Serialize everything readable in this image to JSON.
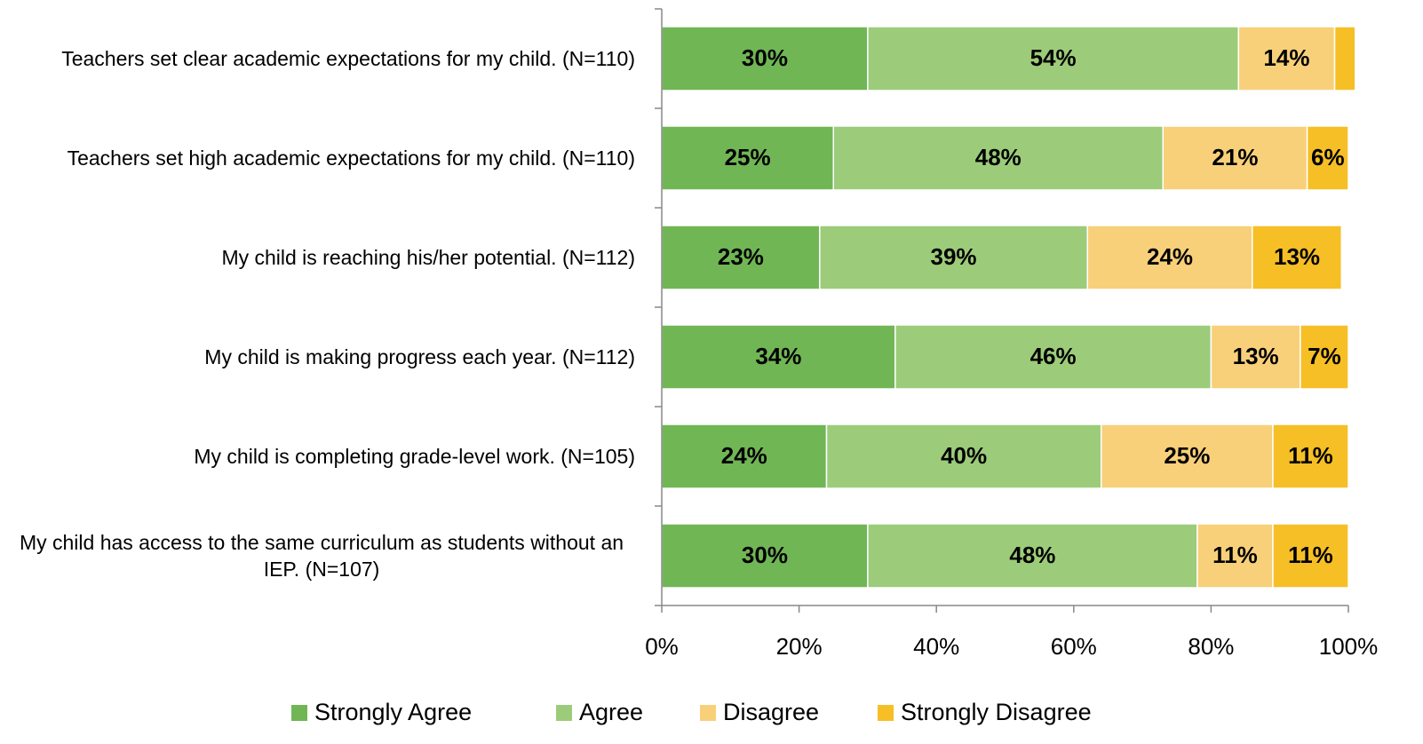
{
  "chart_data": {
    "type": "stacked_bar_horizontal",
    "categories": [
      "Teachers set clear academic expectations for my child. (N=110)",
      "Teachers set high academic expectations for my child. (N=110)",
      "My child is reaching his/her potential. (N=112)",
      "My child is making progress each year. (N=112)",
      "My child is completing grade-level work. (N=105)",
      "My child has access to the same curriculum as students without an IEP. (N=107)"
    ],
    "series": [
      {
        "name": "Strongly Agree",
        "color": "#70b655",
        "values": [
          30,
          25,
          23,
          34,
          24,
          30
        ],
        "value_labels": [
          "30%",
          "25%",
          "23%",
          "34%",
          "24%",
          "30%"
        ]
      },
      {
        "name": "Agree",
        "color": "#9ccc7a",
        "values": [
          54,
          48,
          39,
          46,
          40,
          48
        ],
        "value_labels": [
          "54%",
          "48%",
          "39%",
          "46%",
          "40%",
          "48%"
        ]
      },
      {
        "name": "Disagree",
        "color": "#f8d07a",
        "values": [
          14,
          21,
          24,
          13,
          25,
          11
        ],
        "value_labels": [
          "14%",
          "21%",
          "24%",
          "13%",
          "25%",
          "11%"
        ]
      },
      {
        "name": "Strongly Disagree",
        "color": "#f5bf25",
        "values": [
          3,
          6,
          13,
          7,
          11,
          11
        ],
        "value_labels": [
          null,
          "6%",
          "13%",
          "7%",
          "11%",
          "11%"
        ]
      }
    ],
    "xlim": [
      0,
      100
    ],
    "xticks": [
      {
        "value": 0,
        "label": "0%"
      },
      {
        "value": 20,
        "label": "20%"
      },
      {
        "value": 40,
        "label": "40%"
      },
      {
        "value": 60,
        "label": "60%"
      },
      {
        "value": 80,
        "label": "80%"
      },
      {
        "value": 100,
        "label": "100%"
      }
    ],
    "legend": "bottom"
  }
}
